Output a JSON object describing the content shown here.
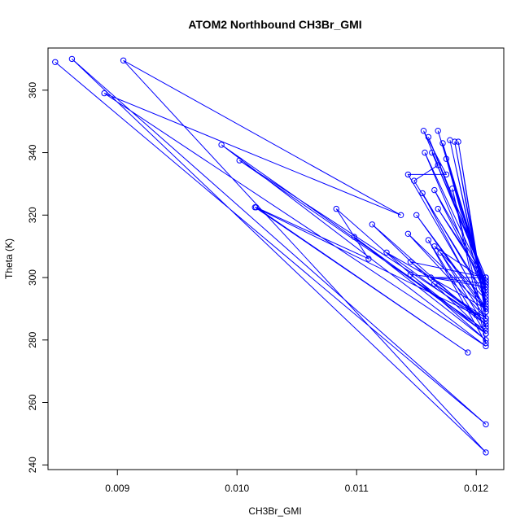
{
  "chart_data": {
    "type": "scatter",
    "title": "ATOM2 Northbound CH3Br_GMI",
    "xlabel": "CH3Br_GMI",
    "ylabel": "Theta (K)",
    "xlim": [
      0.00842,
      0.01223
    ],
    "ylim": [
      238.5,
      373.5
    ],
    "x_ticks": [
      0.009,
      0.01,
      0.011,
      0.012
    ],
    "x_tick_labels": [
      "0.009",
      "0.010",
      "0.011",
      "0.012"
    ],
    "y_ticks": [
      240,
      260,
      280,
      300,
      320,
      340,
      360
    ],
    "y_tick_labels": [
      "240",
      "260",
      "280",
      "300",
      "320",
      "340",
      "360"
    ],
    "grid": false,
    "connected": true,
    "point_style": "open-circle",
    "color": "#0000ff",
    "series": [
      {
        "x": [
          0.00848,
          0.01208,
          0.00862,
          0.01208,
          0.00905,
          0.01137,
          0.00889,
          0.01208,
          0.00987,
          0.01208,
          0.01002,
          0.012,
          0.01015,
          0.01193,
          0.01016,
          0.0111,
          0.01083,
          0.01208,
          0.01098,
          0.01208,
          0.01113,
          0.01208,
          0.01125,
          0.01208,
          0.01143,
          0.01175,
          0.01156,
          0.01168,
          0.01148,
          0.01208,
          0.01157,
          0.01208,
          0.0116,
          0.01208,
          0.01163,
          0.01208,
          0.01165,
          0.01208,
          0.01168,
          0.01208,
          0.01172,
          0.01208,
          0.01175,
          0.01208,
          0.01178,
          0.01208,
          0.01182,
          0.01208,
          0.01185,
          0.01208,
          0.01143,
          0.01208,
          0.0115,
          0.01208,
          0.01155,
          0.01208,
          0.01165,
          0.01208,
          0.01168,
          0.01208,
          0.01145,
          0.01208,
          0.0116,
          0.01208,
          0.0118,
          0.01208,
          0.0117,
          0.01208,
          0.01165,
          0.01208,
          0.01145,
          0.01208,
          0.01162,
          0.01208
        ],
        "y": [
          369,
          253,
          370,
          244,
          369.5,
          320,
          359,
          278,
          342.5,
          283,
          337.5,
          288,
          322.5,
          276,
          322.5,
          306,
          322,
          280,
          313,
          282,
          317,
          285,
          308,
          290,
          333,
          333,
          347,
          336,
          331,
          294,
          340,
          298,
          345,
          300,
          340,
          299,
          328,
          296,
          347,
          297,
          343,
          295,
          338,
          292,
          344,
          291,
          343.5,
          289,
          343.5,
          287,
          314,
          290,
          320,
          289,
          327,
          293,
          310,
          299,
          322,
          298,
          301,
          282,
          312,
          279,
          328.5,
          284,
          308,
          287,
          298,
          286,
          305,
          300,
          300,
          297
        ]
      }
    ]
  }
}
